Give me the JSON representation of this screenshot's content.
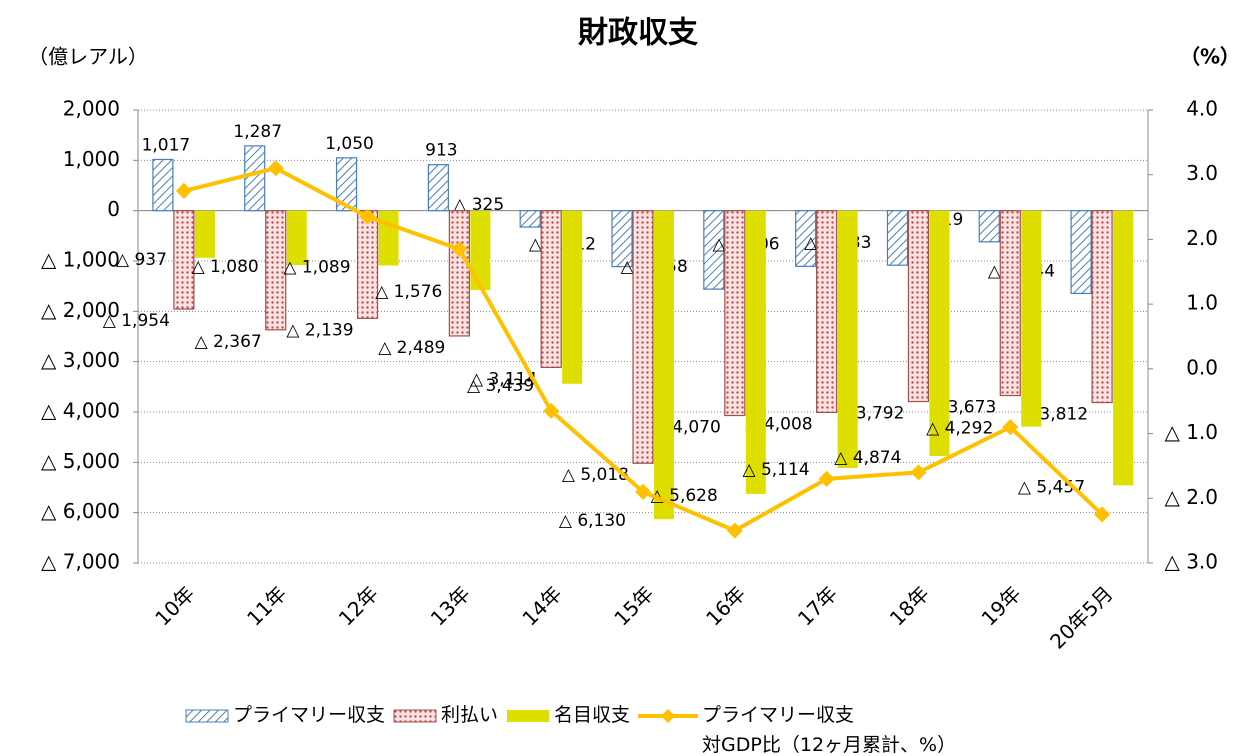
{
  "chart_data": {
    "type": "bar",
    "title": "財政収支",
    "y_label": "（億レアル）",
    "y2_label": "（%）",
    "categories": [
      "10年",
      "11年",
      "12年",
      "13年",
      "14年",
      "15年",
      "16年",
      "17年",
      "18年",
      "19年",
      "20年5月"
    ],
    "ylim": [
      -7000,
      2000
    ],
    "yticks": [
      {
        "value": 2000,
        "label": "2,000"
      },
      {
        "value": 1000,
        "label": "1,000"
      },
      0,
      {
        "value": -1000,
        "label": "△ 1,000"
      },
      {
        "value": -2000,
        "label": "△ 2,000"
      },
      {
        "value": -3000,
        "label": "△ 3,000"
      },
      {
        "value": -4000,
        "label": "△ 4,000"
      },
      {
        "value": -5000,
        "label": "△ 5,000"
      },
      {
        "value": -6000,
        "label": "△ 6,000"
      },
      {
        "value": -7000,
        "label": "△ 7,000"
      }
    ],
    "y2lim": [
      -3,
      4
    ],
    "y2ticks": [
      {
        "value": 4,
        "label": "4.0"
      },
      {
        "value": 3,
        "label": "3.0"
      },
      {
        "value": 2,
        "label": "2.0"
      },
      {
        "value": 1,
        "label": "1.0"
      },
      {
        "value": 0,
        "label": "0.0"
      },
      {
        "value": -1,
        "label": "△ 1.0"
      },
      {
        "value": -2,
        "label": "△ 2.0"
      },
      {
        "value": -3,
        "label": "△ 3.0"
      }
    ],
    "grid": true,
    "legend": "bottom",
    "series": [
      {
        "name": "プライマリー収支",
        "color": "#4a7ebb",
        "values": [
          1017,
          1287,
          1050,
          913,
          -325,
          -1112,
          -1558,
          -1106,
          -1083,
          -619,
          -1644
        ],
        "value_labels": [
          "1,017",
          "1,287",
          "1,050",
          "913",
          "△ 325",
          "△ 1,112",
          "△ 1,558",
          "△ 1,106",
          "△ 1,083",
          "△ 619",
          "△ 1,644"
        ]
      },
      {
        "name": "利払い",
        "color": "#a0504d",
        "values": [
          -1954,
          -2367,
          -2139,
          -2489,
          -3114,
          -5018,
          -4070,
          -4008,
          -3792,
          -3673,
          -3812
        ],
        "value_labels": [
          "△ 1,954",
          "△ 2,367",
          "△ 2,139",
          "△ 2,489",
          "△ 3,114",
          "△ 5,018",
          "△ 4,070",
          "△ 4,008",
          "△ 3,792",
          "△ 3,673",
          "△ 3,812"
        ]
      },
      {
        "name": "名目収支",
        "color": "#dede00",
        "values": [
          -937,
          -1080,
          -1089,
          -1576,
          -3439,
          -6130,
          -5628,
          -5114,
          -4874,
          -4292,
          -5457
        ],
        "value_labels": [
          "△ 937",
          "△ 1,080",
          "△ 1,089",
          "△ 1,576",
          "△ 3,439",
          "△ 6,130",
          "△ 5,628",
          "△ 5,114",
          "△ 4,874",
          "△ 4,292",
          "△ 5,457"
        ]
      },
      {
        "name": "プライマリー収支\n対GDP比（12ヶ月累計、%）",
        "type": "line",
        "axis": "y2",
        "color": "#ffc000",
        "values": [
          2.75,
          3.1,
          2.35,
          1.85,
          -0.65,
          -1.9,
          -2.5,
          -1.7,
          -1.6,
          -0.9,
          -2.25
        ]
      }
    ]
  }
}
